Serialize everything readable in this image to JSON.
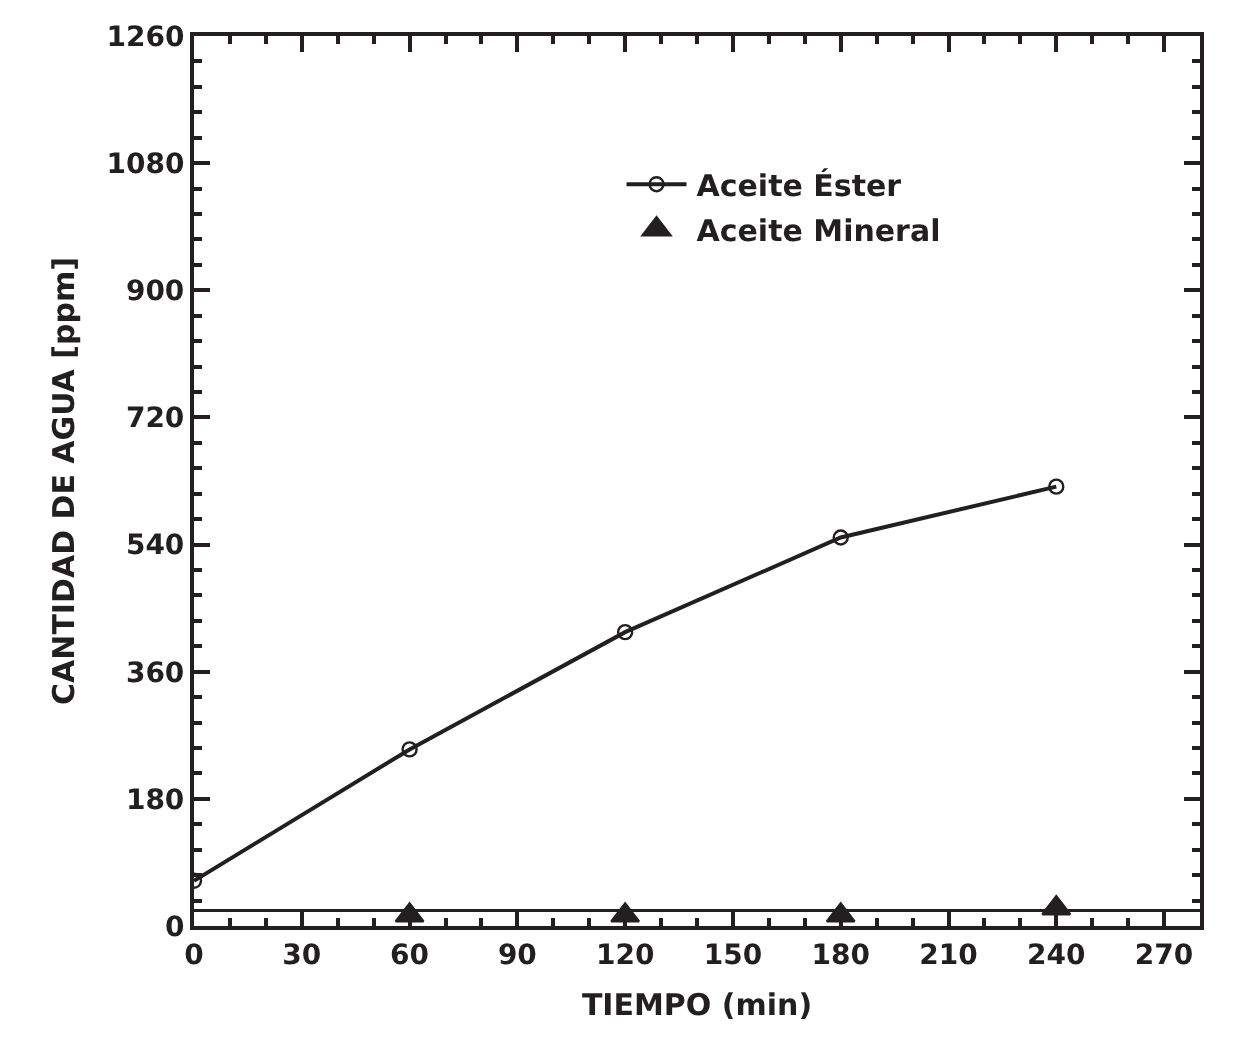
{
  "chart_data": {
    "type": "line",
    "xlabel": "TIEMPO (min)",
    "ylabel": "CANTIDAD DE AGUA [ppm]",
    "xlim": [
      0,
      280
    ],
    "xticks": [
      0,
      30,
      60,
      90,
      120,
      150,
      180,
      210,
      240,
      270
    ],
    "ylim": [
      0,
      1260
    ],
    "yticks": [
      0,
      180,
      360,
      540,
      720,
      900,
      1080,
      1260
    ],
    "series": [
      {
        "name": "Aceite Éster",
        "color": "#231f20",
        "marker": "circle",
        "x": [
          0,
          60,
          120,
          180,
          240
        ],
        "values": [
          64,
          250,
          416,
          550,
          622
        ]
      },
      {
        "name": "Aceite Mineral",
        "color": "#231f20",
        "type": "scatter",
        "marker": "triangle",
        "x": [
          60,
          120,
          180,
          240
        ],
        "values": [
          15,
          15,
          15,
          25
        ]
      }
    ],
    "ref_lines": [
      {
        "axis": "y",
        "value": 22,
        "color": "#231f20"
      }
    ],
    "grid": false,
    "legend": "top right"
  }
}
